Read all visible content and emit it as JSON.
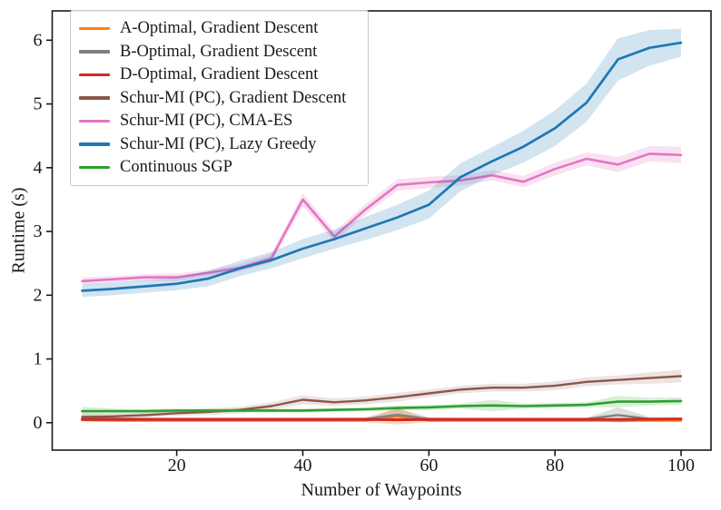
{
  "chart_data": {
    "type": "line",
    "title": "",
    "xlabel": "Number of Waypoints",
    "ylabel": "Runtime (s)",
    "xlim": [
      0.25,
      104.75
    ],
    "ylim": [
      -0.43,
      6.46
    ],
    "xticks": [
      20,
      40,
      60,
      80,
      100
    ],
    "yticks": [
      0,
      1,
      2,
      3,
      4,
      5,
      6
    ],
    "grid": false,
    "legend_position": "upper left",
    "x": [
      5,
      10,
      15,
      20,
      25,
      30,
      35,
      40,
      45,
      50,
      55,
      60,
      65,
      70,
      75,
      80,
      85,
      90,
      95,
      100
    ],
    "series": [
      {
        "name": "A-Optimal, Gradient Descent",
        "color": "#ff7f0e",
        "lw": 2.2,
        "band_alpha": 0.28,
        "values": [
          0.04,
          0.03,
          0.03,
          0.03,
          0.03,
          0.03,
          0.03,
          0.03,
          0.03,
          0.03,
          0.1,
          0.03,
          0.03,
          0.03,
          0.03,
          0.03,
          0.03,
          0.03,
          0.03,
          0.03
        ],
        "band": [
          0.02,
          0.015,
          0.015,
          0.015,
          0.015,
          0.015,
          0.015,
          0.015,
          0.015,
          0.02,
          0.13,
          0.02,
          0.015,
          0.015,
          0.015,
          0.015,
          0.015,
          0.02,
          0.015,
          0.02
        ]
      },
      {
        "name": "B-Optimal, Gradient Descent",
        "color": "#7f7f7f",
        "lw": 2.2,
        "band_alpha": 0.25,
        "values": [
          0.07,
          0.065,
          0.06,
          0.06,
          0.06,
          0.06,
          0.06,
          0.06,
          0.06,
          0.06,
          0.125,
          0.06,
          0.06,
          0.06,
          0.06,
          0.06,
          0.06,
          0.12,
          0.06,
          0.06
        ],
        "band": [
          0.03,
          0.02,
          0.02,
          0.02,
          0.02,
          0.02,
          0.02,
          0.02,
          0.02,
          0.025,
          0.1,
          0.025,
          0.02,
          0.02,
          0.02,
          0.02,
          0.02,
          0.12,
          0.03,
          0.02
        ]
      },
      {
        "name": "D-Optimal, Gradient Descent",
        "color": "#d62728",
        "lw": 3.0,
        "band_alpha": 0.25,
        "values": [
          0.05,
          0.05,
          0.05,
          0.05,
          0.05,
          0.05,
          0.05,
          0.05,
          0.05,
          0.05,
          0.045,
          0.05,
          0.05,
          0.05,
          0.05,
          0.05,
          0.05,
          0.05,
          0.055,
          0.06
        ],
        "band": [
          0.015,
          0.015,
          0.015,
          0.015,
          0.015,
          0.015,
          0.015,
          0.015,
          0.015,
          0.015,
          0.015,
          0.015,
          0.015,
          0.015,
          0.015,
          0.015,
          0.015,
          0.015,
          0.015,
          0.015
        ]
      },
      {
        "name": "Schur-MI (PC), Gradient Descent",
        "color": "#8c564b",
        "lw": 2.4,
        "band_alpha": 0.16,
        "values": [
          0.09,
          0.1,
          0.12,
          0.15,
          0.17,
          0.2,
          0.26,
          0.36,
          0.32,
          0.35,
          0.4,
          0.46,
          0.52,
          0.55,
          0.55,
          0.58,
          0.64,
          0.67,
          0.7,
          0.73
        ],
        "band": [
          0.05,
          0.04,
          0.04,
          0.04,
          0.05,
          0.05,
          0.06,
          0.07,
          0.06,
          0.06,
          0.07,
          0.06,
          0.06,
          0.06,
          0.06,
          0.07,
          0.07,
          0.07,
          0.09,
          0.1
        ]
      },
      {
        "name": "Schur-MI (PC), CMA-ES",
        "color": "#e377c2",
        "lw": 2.6,
        "band_alpha": 0.22,
        "values": [
          2.22,
          2.25,
          2.28,
          2.28,
          2.35,
          2.43,
          2.58,
          3.5,
          2.92,
          3.35,
          3.73,
          3.77,
          3.8,
          3.88,
          3.78,
          3.98,
          4.14,
          4.05,
          4.22,
          4.2
        ],
        "band": [
          0.06,
          0.05,
          0.05,
          0.06,
          0.05,
          0.06,
          0.07,
          0.1,
          0.08,
          0.08,
          0.09,
          0.09,
          0.08,
          0.08,
          0.09,
          0.1,
          0.1,
          0.12,
          0.12,
          0.13
        ]
      },
      {
        "name": "Schur-MI (PC), Lazy Greedy",
        "color": "#1f77b4",
        "lw": 2.7,
        "band_alpha": 0.2,
        "values": [
          2.07,
          2.1,
          2.14,
          2.18,
          2.26,
          2.42,
          2.55,
          2.73,
          2.88,
          3.05,
          3.22,
          3.42,
          3.85,
          4.1,
          4.33,
          4.62,
          5.02,
          5.7,
          5.88,
          5.96
        ],
        "band": [
          0.1,
          0.1,
          0.1,
          0.1,
          0.12,
          0.12,
          0.13,
          0.15,
          0.15,
          0.18,
          0.2,
          0.22,
          0.22,
          0.22,
          0.25,
          0.28,
          0.3,
          0.33,
          0.28,
          0.22
        ]
      },
      {
        "name": "Continuous SGP",
        "color": "#2ca02c",
        "lw": 2.6,
        "band_alpha": 0.18,
        "values": [
          0.18,
          0.18,
          0.18,
          0.19,
          0.19,
          0.19,
          0.19,
          0.19,
          0.2,
          0.21,
          0.23,
          0.24,
          0.26,
          0.27,
          0.26,
          0.27,
          0.28,
          0.33,
          0.33,
          0.34
        ],
        "band": [
          0.07,
          0.04,
          0.03,
          0.03,
          0.03,
          0.03,
          0.03,
          0.03,
          0.03,
          0.03,
          0.04,
          0.04,
          0.04,
          0.09,
          0.04,
          0.04,
          0.04,
          0.09,
          0.06,
          0.06
        ]
      }
    ],
    "style": {
      "axis_color": "#1a1a1a",
      "legend_border": "#c9c9c9",
      "background": "#ffffff"
    }
  }
}
